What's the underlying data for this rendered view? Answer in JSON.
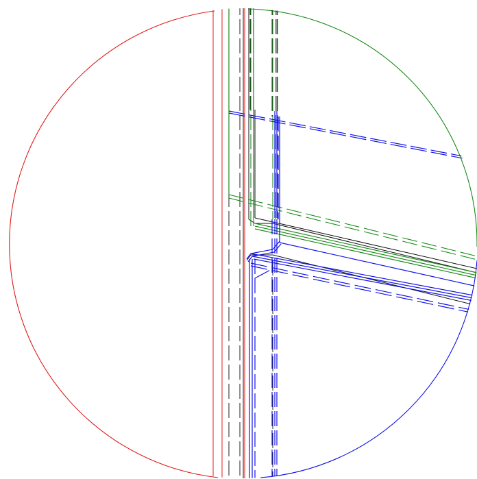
{
  "view": {
    "background": "#ffffff"
  },
  "colors": {
    "red": "#e01b1b",
    "green": "#1b8a1b",
    "blue": "#1111e6",
    "black": "#111111",
    "dashed_black": "#202020"
  },
  "icons": {
    "detail_view": "circular-detail-view"
  }
}
